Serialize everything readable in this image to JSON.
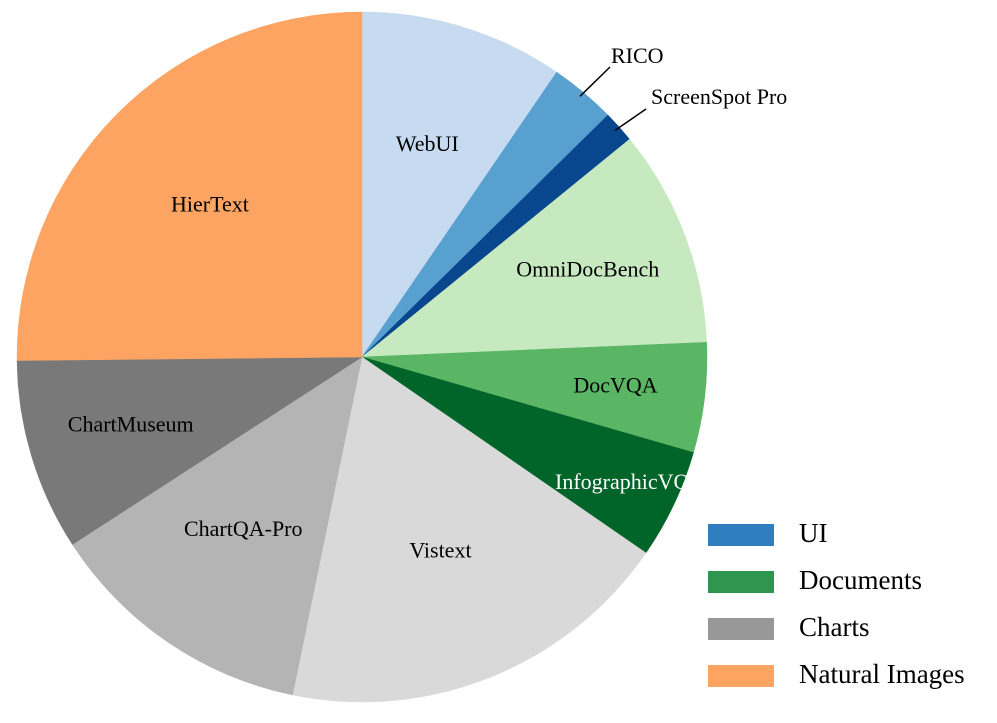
{
  "chart_data": {
    "type": "pie",
    "start_angle_deg": 90,
    "direction": "clockwise",
    "slices": [
      {
        "label": "WebUI",
        "value": 10.2,
        "group": "UI",
        "color": "#c6dbef",
        "label_color": "#000000",
        "label_mode": "inside"
      },
      {
        "label": "RICO",
        "value": 3.3,
        "group": "UI",
        "color": "#58a0d0",
        "label_color": "#000000",
        "label_mode": "outside"
      },
      {
        "label": "ScreenSpot Pro",
        "value": 1.6,
        "group": "UI",
        "color": "#08468e",
        "label_color": "#000000",
        "label_mode": "outside"
      },
      {
        "label": "OmniDocBench",
        "value": 10.9,
        "group": "Documents",
        "color": "#c7e9c0",
        "label_color": "#000000",
        "label_mode": "inside"
      },
      {
        "label": "DocVQA",
        "value": 5.5,
        "group": "Documents",
        "color": "#5ab565",
        "label_color": "#000000",
        "label_mode": "inside"
      },
      {
        "label": "InfographicVQA",
        "value": 5.5,
        "group": "Documents",
        "color": "#016428",
        "label_color": "#ffffff",
        "label_mode": "inside"
      },
      {
        "label": "Vistext",
        "value": 19.9,
        "group": "Charts",
        "color": "#d9d9d9",
        "label_color": "#000000",
        "label_mode": "inside"
      },
      {
        "label": "ChartQA-Pro",
        "value": 13.5,
        "group": "Charts",
        "color": "#b4b4b4",
        "label_color": "#000000",
        "label_mode": "inside"
      },
      {
        "label": "ChartMuseum",
        "value": 9.6,
        "group": "Charts",
        "color": "#797979",
        "label_color": "#000000",
        "label_mode": "inside"
      },
      {
        "label": "HierText",
        "value": 26.9,
        "group": "Natural Images",
        "color": "#fda462",
        "label_color": "#000000",
        "label_mode": "inside"
      }
    ],
    "legend": {
      "placement": "bottom-right",
      "entries": [
        {
          "label": "UI",
          "color": "#2f7fc0"
        },
        {
          "label": "Documents",
          "color": "#2f9650"
        },
        {
          "label": "Charts",
          "color": "#989898"
        },
        {
          "label": "Natural Images",
          "color": "#fda462"
        }
      ]
    }
  }
}
